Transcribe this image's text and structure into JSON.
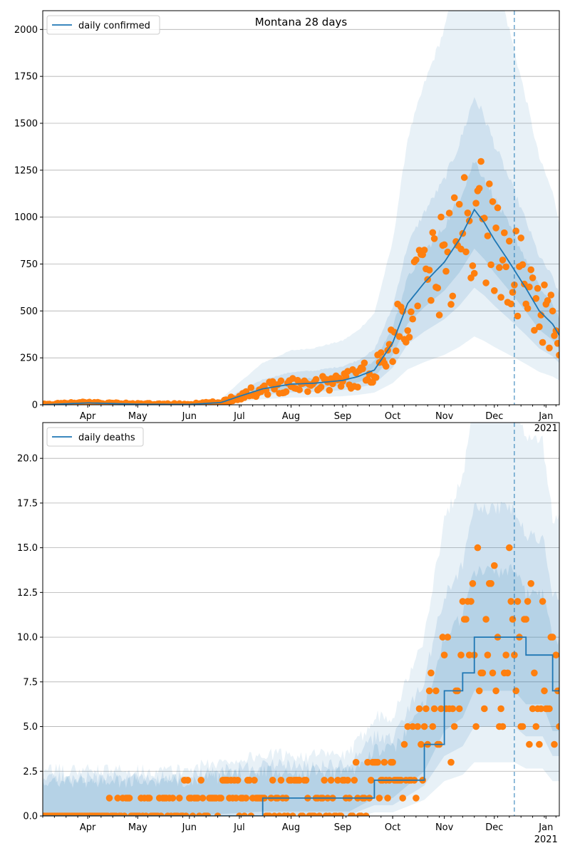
{
  "chart_data": [
    {
      "type": "line",
      "title": "Montana 28 days",
      "ylabel": "",
      "xlabel": "",
      "ylim": [
        0,
        2100
      ],
      "yticks": [
        "0",
        "250",
        "500",
        "750",
        "1000",
        "1250",
        "1500",
        "1750",
        "2000"
      ],
      "x_tick_labels": [
        "Apr",
        "May",
        "Jun",
        "Jul",
        "Aug",
        "Sep",
        "Oct",
        "Nov",
        "Dec",
        "Jan"
      ],
      "x_year_label": "2021",
      "legend": {
        "label": "daily confirmed",
        "placement": "top-left"
      },
      "grid": "horizontal",
      "forecast_start": "2020-12-13",
      "series": [
        {
          "name": "daily confirmed",
          "kind": "line",
          "x": [
            "2020-03-05",
            "2020-04-01",
            "2020-05-01",
            "2020-06-01",
            "2020-06-20",
            "2020-07-01",
            "2020-07-15",
            "2020-08-01",
            "2020-08-15",
            "2020-09-01",
            "2020-09-10",
            "2020-09-20",
            "2020-10-01",
            "2020-10-10",
            "2020-10-20",
            "2020-11-01",
            "2020-11-10",
            "2020-11-19",
            "2020-11-25",
            "2020-12-01",
            "2020-12-10",
            "2020-12-20",
            "2020-12-28",
            "2021-01-05",
            "2021-01-09"
          ],
          "values": [
            0,
            10,
            3,
            2,
            12,
            45,
            85,
            110,
            115,
            130,
            150,
            185,
            330,
            540,
            650,
            760,
            880,
            1040,
            970,
            880,
            760,
            620,
            500,
            430,
            370
          ]
        }
      ],
      "observed_points_description": "orange observed daily confirmed cases"
    },
    {
      "type": "line",
      "title": "",
      "ylabel": "",
      "xlabel": "",
      "ylim": [
        0,
        22
      ],
      "yticks": [
        "0.0",
        "2.5",
        "5.0",
        "7.5",
        "10.0",
        "12.5",
        "15.0",
        "17.5",
        "20.0"
      ],
      "x_tick_labels": [
        "Apr",
        "May",
        "Jun",
        "Jul",
        "Aug",
        "Sep",
        "Oct",
        "Nov",
        "Dec",
        "Jan"
      ],
      "x_year_label": "2021",
      "legend": {
        "label": "daily deaths",
        "placement": "top-left"
      },
      "grid": "horizontal",
      "forecast_start": "2020-12-13",
      "series": [
        {
          "name": "daily deaths",
          "kind": "step",
          "x": [
            "2020-03-05",
            "2020-07-15",
            "2020-09-05",
            "2020-09-20",
            "2020-10-01",
            "2020-10-20",
            "2020-11-01",
            "2020-11-12",
            "2020-11-19",
            "2020-11-28",
            "2020-12-05",
            "2020-12-13",
            "2020-12-20",
            "2020-12-30",
            "2021-01-05",
            "2021-01-09"
          ],
          "values": [
            0,
            1,
            1,
            2,
            2,
            4,
            7,
            8,
            10,
            10,
            10,
            10,
            9,
            9,
            7,
            7
          ]
        }
      ]
    }
  ]
}
